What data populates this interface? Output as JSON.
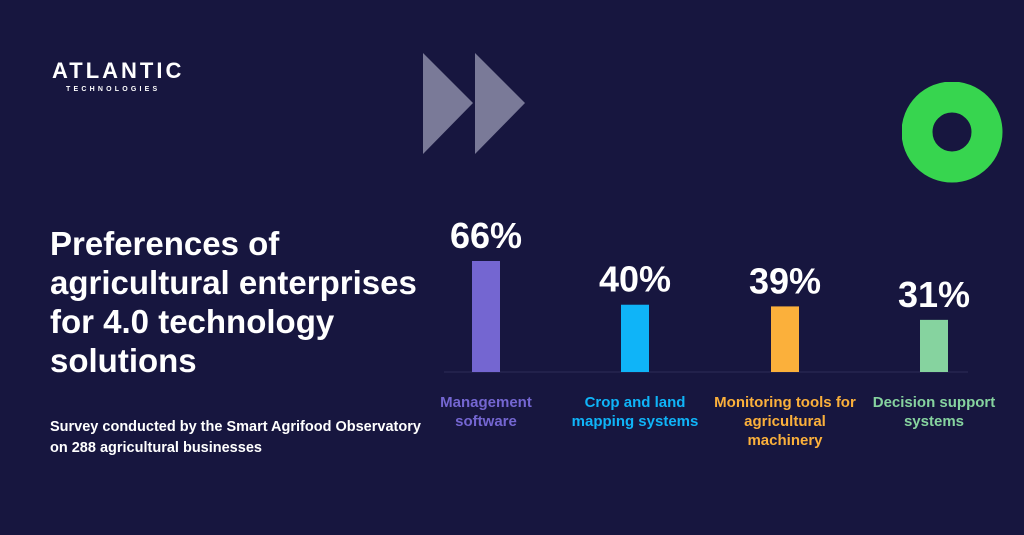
{
  "brand": {
    "name": "ATLANTIC",
    "tagline": "TECHNOLOGIES"
  },
  "headline": "Preferences of agricultural enterprises for 4.0 technology solutions",
  "subheadline": "Survey conducted by the Smart Agrifood Observatory on 288 agricultural businesses",
  "decor": {
    "arrows_icon": "fast-forward-icon",
    "ring_icon": "ring-icon",
    "arrows_color": "#7a7a98",
    "ring_color": "#37d54f",
    "background_color": "#17163f"
  },
  "chart_data": {
    "type": "bar",
    "title": "",
    "xlabel": "",
    "ylabel": "",
    "ylim": [
      0,
      66
    ],
    "grid": false,
    "legend": "none",
    "categories": [
      "Management software",
      "Crop and land mapping systems",
      "Monitoring tools for agricultural machinery",
      "Decision support systems"
    ],
    "values": [
      66,
      40,
      39,
      31
    ],
    "value_labels": [
      "66%",
      "40%",
      "39%",
      "31%"
    ],
    "colors": [
      "#7466d1",
      "#0fb4f8",
      "#fbb03b",
      "#86d39f"
    ]
  }
}
